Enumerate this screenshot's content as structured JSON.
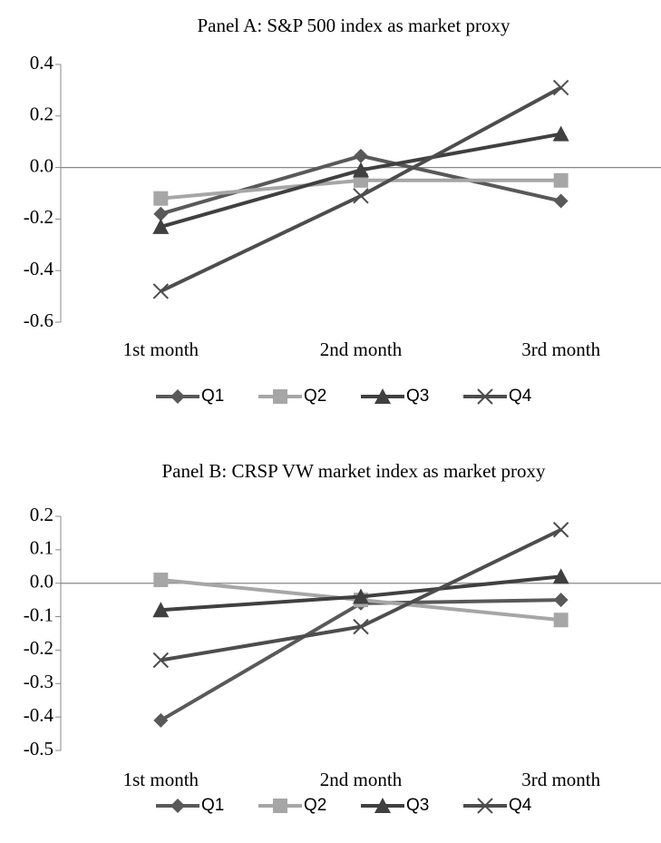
{
  "chart_data": [
    {
      "type": "line",
      "title": "Panel A: S&P 500 index as market proxy",
      "categories": [
        "1st month",
        "2nd month",
        "3rd month"
      ],
      "ylim": [
        -0.6,
        0.4
      ],
      "yticks": [
        -0.6,
        -0.4,
        -0.2,
        {
          "value": 0,
          "label": "0.0"
        },
        0.2,
        0.4
      ],
      "legend": "bottom",
      "series": [
        {
          "name": "Q1",
          "color": "#595959",
          "marker": "diamond",
          "values": [
            -0.18,
            0.045,
            -0.13
          ]
        },
        {
          "name": "Q2",
          "color": "#a6a6a6",
          "marker": "square",
          "values": [
            -0.12,
            -0.05,
            -0.05
          ]
        },
        {
          "name": "Q3",
          "color": "#404040",
          "marker": "triangle",
          "values": [
            -0.23,
            -0.01,
            0.13
          ]
        },
        {
          "name": "Q4",
          "color": "#4d4d4d",
          "marker": "x",
          "values": [
            -0.48,
            -0.11,
            0.31
          ]
        }
      ]
    },
    {
      "type": "line",
      "title": "Panel B: CRSP VW market index as market proxy",
      "categories": [
        "1st month",
        "2nd month",
        "3rd month"
      ],
      "ylim": [
        -0.5,
        0.2
      ],
      "yticks": [
        -0.5,
        -0.4,
        -0.3,
        -0.2,
        -0.1,
        {
          "value": 0,
          "label": "0.0"
        },
        0.1,
        0.2
      ],
      "legend": "bottom",
      "series": [
        {
          "name": "Q1",
          "color": "#595959",
          "marker": "diamond",
          "values": [
            -0.41,
            -0.06,
            -0.05
          ]
        },
        {
          "name": "Q2",
          "color": "#a6a6a6",
          "marker": "square",
          "values": [
            0.01,
            -0.05,
            -0.11
          ]
        },
        {
          "name": "Q3",
          "color": "#404040",
          "marker": "triangle",
          "values": [
            -0.08,
            -0.04,
            0.02
          ]
        },
        {
          "name": "Q4",
          "color": "#4d4d4d",
          "marker": "x",
          "values": [
            -0.23,
            -0.13,
            0.16
          ]
        }
      ]
    }
  ]
}
